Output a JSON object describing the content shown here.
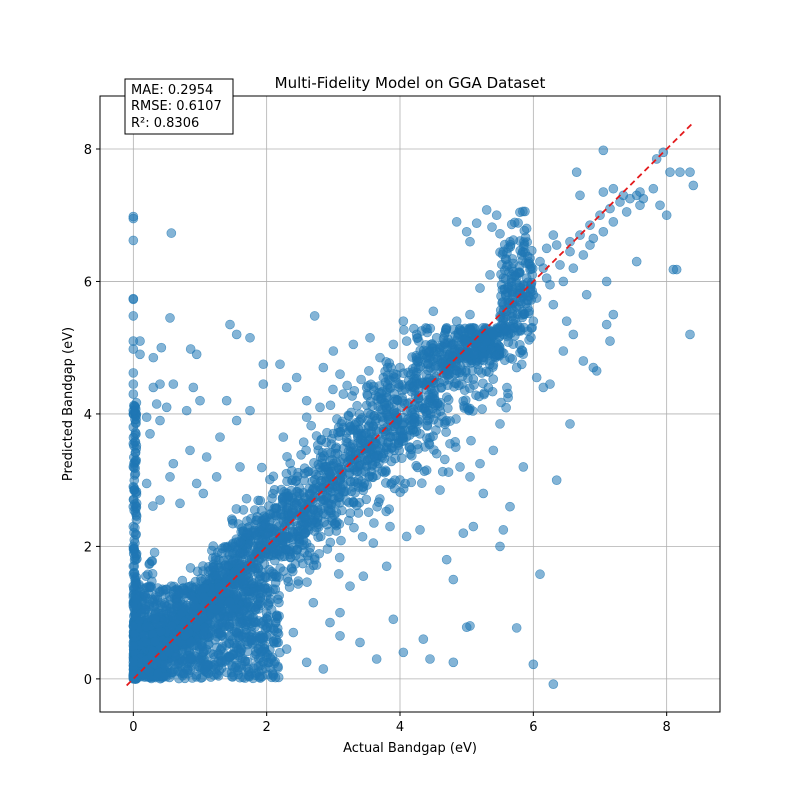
{
  "chart_data": {
    "type": "scatter",
    "title": "Multi-Fidelity Model on GGA Dataset",
    "xlabel": "Actual Bandgap (eV)",
    "ylabel": "Predicted Bandgap (eV)",
    "xlim": [
      -0.5,
      8.8
    ],
    "ylim": [
      -0.5,
      8.8
    ],
    "xticks": [
      0,
      2,
      4,
      6,
      8
    ],
    "yticks": [
      0,
      2,
      4,
      6,
      8
    ],
    "grid": true,
    "point_color": "#1f77b4",
    "point_alpha": 0.55,
    "reference_line": {
      "x": [
        -0.1,
        8.4
      ],
      "y": [
        -0.1,
        8.4
      ],
      "color": "#e31a1c",
      "style": "dashed"
    },
    "metrics": [
      "MAE: 0.2954",
      "RMSE: 0.6107",
      "R²: 0.8306"
    ],
    "points": [
      [
        0.0,
        6.98
      ],
      [
        0.0,
        6.95
      ],
      [
        0.0,
        6.62
      ],
      [
        0.0,
        5.74
      ],
      [
        0.0,
        5.73
      ],
      [
        0.0,
        5.48
      ],
      [
        0.0,
        5.1
      ],
      [
        0.0,
        4.98
      ],
      [
        0.0,
        4.62
      ],
      [
        0.0,
        4.45
      ],
      [
        0.0,
        4.3
      ],
      [
        0.0,
        4.05
      ],
      [
        0.0,
        3.8
      ],
      [
        0.0,
        3.55
      ],
      [
        0.0,
        3.2
      ],
      [
        0.0,
        2.9
      ],
      [
        0.0,
        2.6
      ],
      [
        0.0,
        2.3
      ],
      [
        0.0,
        2.0
      ],
      [
        0.0,
        1.7
      ],
      [
        0.0,
        1.4
      ],
      [
        0.0,
        1.1
      ],
      [
        0.0,
        0.8
      ],
      [
        0.0,
        0.5
      ],
      [
        0.0,
        0.25
      ],
      [
        0.0,
        0.05
      ],
      [
        0.57,
        6.73
      ],
      [
        0.1,
        5.1
      ],
      [
        0.1,
        4.9
      ],
      [
        0.3,
        4.85
      ],
      [
        0.3,
        4.4
      ],
      [
        0.4,
        4.45
      ],
      [
        0.42,
        5.0
      ],
      [
        0.55,
        5.45
      ],
      [
        0.6,
        4.45
      ],
      [
        0.86,
        4.98
      ],
      [
        0.95,
        4.9
      ],
      [
        0.9,
        4.4
      ],
      [
        0.2,
        3.95
      ],
      [
        0.4,
        3.9
      ],
      [
        0.35,
        4.15
      ],
      [
        0.5,
        4.1
      ],
      [
        0.8,
        4.05
      ],
      [
        1.0,
        4.2
      ],
      [
        1.4,
        4.2
      ],
      [
        1.45,
        5.35
      ],
      [
        1.55,
        5.2
      ],
      [
        1.75,
        5.15
      ],
      [
        1.95,
        4.75
      ],
      [
        2.2,
        4.75
      ],
      [
        2.3,
        4.4
      ],
      [
        2.45,
        4.55
      ],
      [
        2.6,
        4.2
      ],
      [
        2.72,
        5.48
      ],
      [
        2.85,
        4.7
      ],
      [
        3.0,
        4.95
      ],
      [
        3.1,
        4.6
      ],
      [
        3.3,
        5.05
      ],
      [
        3.55,
        5.15
      ],
      [
        3.7,
        4.85
      ],
      [
        3.9,
        5.05
      ],
      [
        4.05,
        5.4
      ],
      [
        4.1,
        5.1
      ],
      [
        4.25,
        5.2
      ],
      [
        4.5,
        5.55
      ],
      [
        4.55,
        5.15
      ],
      [
        4.7,
        5.3
      ],
      [
        4.85,
        5.4
      ],
      [
        5.05,
        5.5
      ],
      [
        5.2,
        5.9
      ],
      [
        5.05,
        6.6
      ],
      [
        4.85,
        6.9
      ],
      [
        5.0,
        6.75
      ],
      [
        5.15,
        6.88
      ],
      [
        5.3,
        7.08
      ],
      [
        5.45,
        7.0
      ],
      [
        5.38,
        6.82
      ],
      [
        5.5,
        6.72
      ],
      [
        5.65,
        6.6
      ],
      [
        5.9,
        6.8
      ],
      [
        6.2,
        6.05
      ],
      [
        6.0,
        5.8
      ],
      [
        6.3,
        5.65
      ],
      [
        6.5,
        5.4
      ],
      [
        6.6,
        5.2
      ],
      [
        6.45,
        4.95
      ],
      [
        6.75,
        4.8
      ],
      [
        6.9,
        4.7
      ],
      [
        6.95,
        4.65
      ],
      [
        7.1,
        5.35
      ],
      [
        7.2,
        5.5
      ],
      [
        7.15,
        5.1
      ],
      [
        7.1,
        6.0
      ],
      [
        6.8,
        5.8
      ],
      [
        6.65,
        7.65
      ],
      [
        6.7,
        7.3
      ],
      [
        7.05,
        7.98
      ],
      [
        7.05,
        7.35
      ],
      [
        7.2,
        7.4
      ],
      [
        7.35,
        7.3
      ],
      [
        7.55,
        7.3
      ],
      [
        7.65,
        7.25
      ],
      [
        7.85,
        7.85
      ],
      [
        7.95,
        7.95
      ],
      [
        7.9,
        7.15
      ],
      [
        8.0,
        7.0
      ],
      [
        8.05,
        7.65
      ],
      [
        8.2,
        7.65
      ],
      [
        8.35,
        7.65
      ],
      [
        8.4,
        7.45
      ],
      [
        8.1,
        6.18
      ],
      [
        8.15,
        6.18
      ],
      [
        8.35,
        5.2
      ],
      [
        7.55,
        6.3
      ],
      [
        6.3,
        6.7
      ],
      [
        6.55,
        6.6
      ],
      [
        6.85,
        6.55
      ],
      [
        6.15,
        4.4
      ],
      [
        6.05,
        4.55
      ],
      [
        6.25,
        4.45
      ],
      [
        5.75,
        4.7
      ],
      [
        5.5,
        3.85
      ],
      [
        5.4,
        3.45
      ],
      [
        5.85,
        3.2
      ],
      [
        6.35,
        3.0
      ],
      [
        6.55,
        3.85
      ],
      [
        5.2,
        3.25
      ],
      [
        5.25,
        2.8
      ],
      [
        5.05,
        3.05
      ],
      [
        5.65,
        2.6
      ],
      [
        5.55,
        2.25
      ],
      [
        5.5,
        2.0
      ],
      [
        5.1,
        2.3
      ],
      [
        6.1,
        1.58
      ],
      [
        6.0,
        0.22
      ],
      [
        6.3,
        -0.08
      ],
      [
        5.75,
        0.77
      ],
      [
        5.05,
        0.8
      ],
      [
        5.0,
        0.78
      ],
      [
        4.8,
        0.25
      ],
      [
        4.45,
        0.3
      ],
      [
        4.35,
        0.6
      ],
      [
        4.05,
        0.4
      ],
      [
        3.9,
        0.9
      ],
      [
        3.65,
        0.3
      ],
      [
        3.4,
        0.55
      ],
      [
        3.1,
        0.65
      ],
      [
        2.85,
        0.15
      ],
      [
        2.6,
        0.25
      ],
      [
        2.3,
        0.45
      ],
      [
        4.8,
        1.5
      ],
      [
        4.7,
        1.8
      ],
      [
        4.95,
        2.2
      ],
      [
        4.3,
        2.25
      ],
      [
        4.1,
        2.15
      ],
      [
        4.6,
        2.85
      ],
      [
        4.9,
        3.2
      ],
      [
        4.55,
        3.4
      ],
      [
        4.3,
        3.7
      ],
      [
        4.75,
        3.55
      ],
      [
        4.4,
        3.15
      ],
      [
        3.85,
        2.3
      ],
      [
        3.6,
        2.05
      ],
      [
        3.8,
        1.7
      ],
      [
        3.45,
        1.55
      ],
      [
        3.25,
        1.4
      ],
      [
        3.1,
        1.0
      ],
      [
        2.7,
        1.15
      ],
      [
        2.95,
        0.85
      ],
      [
        2.4,
        0.7
      ],
      [
        2.15,
        0.95
      ],
      [
        1.3,
        3.65
      ],
      [
        0.85,
        3.45
      ],
      [
        0.6,
        3.25
      ],
      [
        1.1,
        3.35
      ],
      [
        1.55,
        3.9
      ],
      [
        1.75,
        4.05
      ],
      [
        1.95,
        4.45
      ],
      [
        0.25,
        3.7
      ],
      [
        0.55,
        3.05
      ],
      [
        0.95,
        2.95
      ],
      [
        1.25,
        3.05
      ],
      [
        1.6,
        3.2
      ],
      [
        0.7,
        2.65
      ],
      [
        0.4,
        2.7
      ],
      [
        0.2,
        2.95
      ],
      [
        1.05,
        2.8
      ],
      [
        2.25,
        3.65
      ],
      [
        2.6,
        3.95
      ],
      [
        2.8,
        4.1
      ],
      [
        3.15,
        4.3
      ],
      [
        3.5,
        4.4
      ],
      [
        3.75,
        4.55
      ],
      [
        4.0,
        4.7
      ],
      [
        4.25,
        4.85
      ],
      [
        4.4,
        4.95
      ],
      [
        4.6,
        5.0
      ],
      [
        4.8,
        5.05
      ],
      [
        5.0,
        5.1
      ],
      [
        5.2,
        5.15
      ],
      [
        5.4,
        5.2
      ],
      [
        5.6,
        5.25
      ],
      [
        5.8,
        5.3
      ],
      [
        6.0,
        5.4
      ],
      [
        6.1,
        6.3
      ],
      [
        6.2,
        6.5
      ],
      [
        6.4,
        6.25
      ],
      [
        6.55,
        6.45
      ],
      [
        6.7,
        6.7
      ],
      [
        6.85,
        6.85
      ],
      [
        7.0,
        7.0
      ],
      [
        7.15,
        7.1
      ],
      [
        7.3,
        7.2
      ],
      [
        7.45,
        7.25
      ],
      [
        7.6,
        7.35
      ],
      [
        5.95,
        6.35
      ],
      [
        5.7,
        6.15
      ],
      [
        5.55,
        6.05
      ],
      [
        5.35,
        6.1
      ],
      [
        5.8,
        5.7
      ],
      [
        5.6,
        5.55
      ],
      [
        5.85,
        5.95
      ],
      [
        6.05,
        5.75
      ],
      [
        6.25,
        5.95
      ],
      [
        6.45,
        6.0
      ],
      [
        6.6,
        6.2
      ],
      [
        6.75,
        6.4
      ],
      [
        6.9,
        6.65
      ],
      [
        7.05,
        6.75
      ],
      [
        7.2,
        6.9
      ],
      [
        7.4,
        7.05
      ],
      [
        7.6,
        7.15
      ],
      [
        7.8,
        7.4
      ],
      [
        6.35,
        6.55
      ],
      [
        6.15,
        6.2
      ],
      [
        5.9,
        6.05
      ]
    ],
    "cluster": {
      "x_center_fn": "y_approx_x",
      "count": 2600,
      "noise_sd": 0.45,
      "x_max": 6.0,
      "y_max": 5.3
    }
  }
}
